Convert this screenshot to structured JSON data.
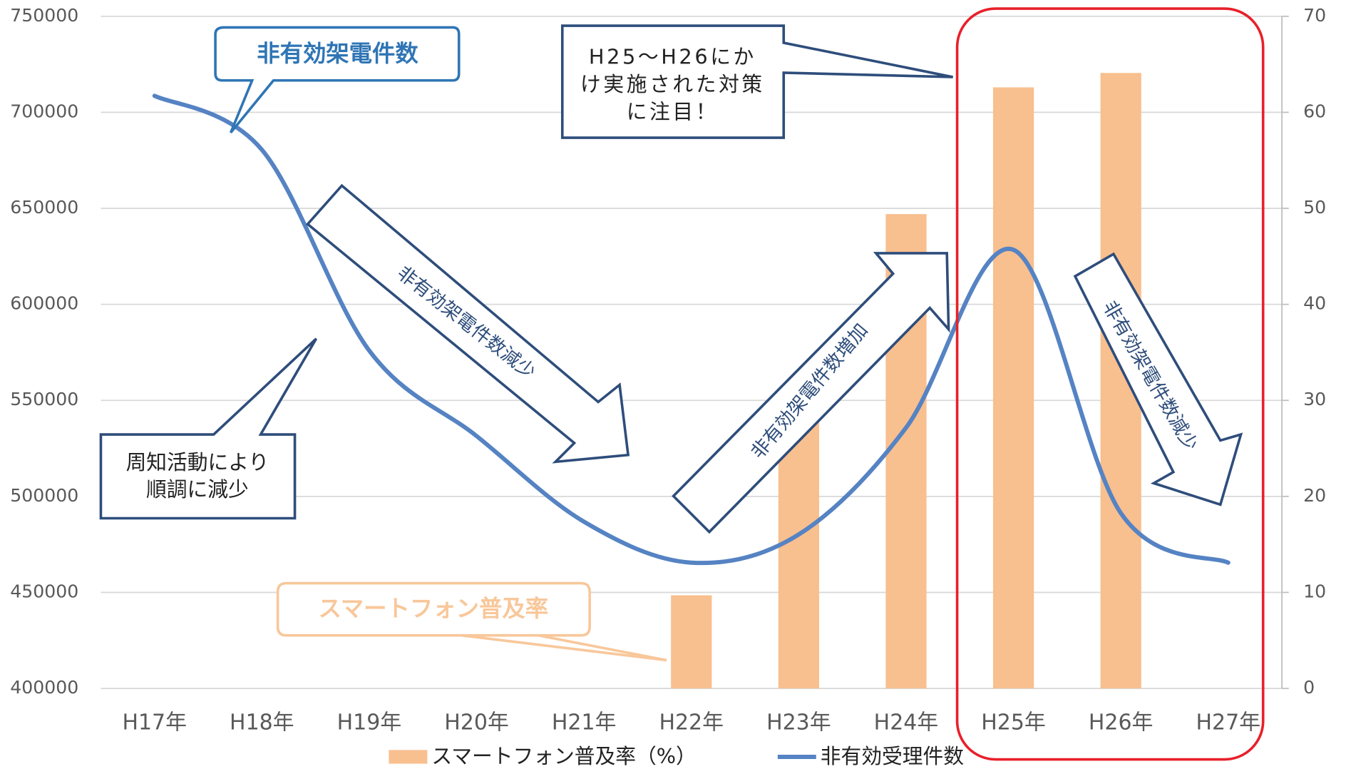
{
  "chart_data": {
    "type": "bar",
    "categories": [
      "H17年",
      "H18年",
      "H19年",
      "H20年",
      "H21年",
      "H22年",
      "H23年",
      "H24年",
      "H25年",
      "H26年",
      "H27年"
    ],
    "series": [
      {
        "name": "スマートフォン普及率（%）",
        "type": "bar",
        "axis": "y2",
        "color": "#f8bf8f",
        "values": [
          null,
          null,
          null,
          null,
          null,
          9.7,
          29.2,
          49.4,
          62.6,
          64.1,
          null
        ]
      },
      {
        "name": "非有効受理件数",
        "type": "line",
        "color": "#5583c3",
        "values": [
          708600,
          680500,
          575900,
          531400,
          486800,
          465500,
          480200,
          535800,
          628400,
          491300,
          465500
        ]
      }
    ],
    "ylim": [
      400000,
      750000
    ],
    "yticks": [
      400000,
      450000,
      500000,
      550000,
      600000,
      650000,
      700000,
      750000
    ],
    "y2lim": [
      0,
      70
    ],
    "y2ticks": [
      0,
      10,
      20,
      30,
      40,
      50,
      60,
      70
    ],
    "grid": true,
    "legend": "bottom",
    "annotations": [
      {
        "lines": [
          "非有効架電件数"
        ]
      },
      {
        "lines": [
          "H25～H26にか",
          "け実施された対策",
          "に注目！"
        ]
      },
      {
        "lines": [
          "周知活動により",
          "順調に減少"
        ]
      },
      {
        "lines": [
          "スマートフォン普及率"
        ]
      },
      {
        "lines": [
          "非有効架電件数減少"
        ]
      },
      {
        "lines": [
          "非有効架電件数増加"
        ]
      },
      {
        "lines": [
          "非有効架電件数減少"
        ]
      }
    ]
  }
}
